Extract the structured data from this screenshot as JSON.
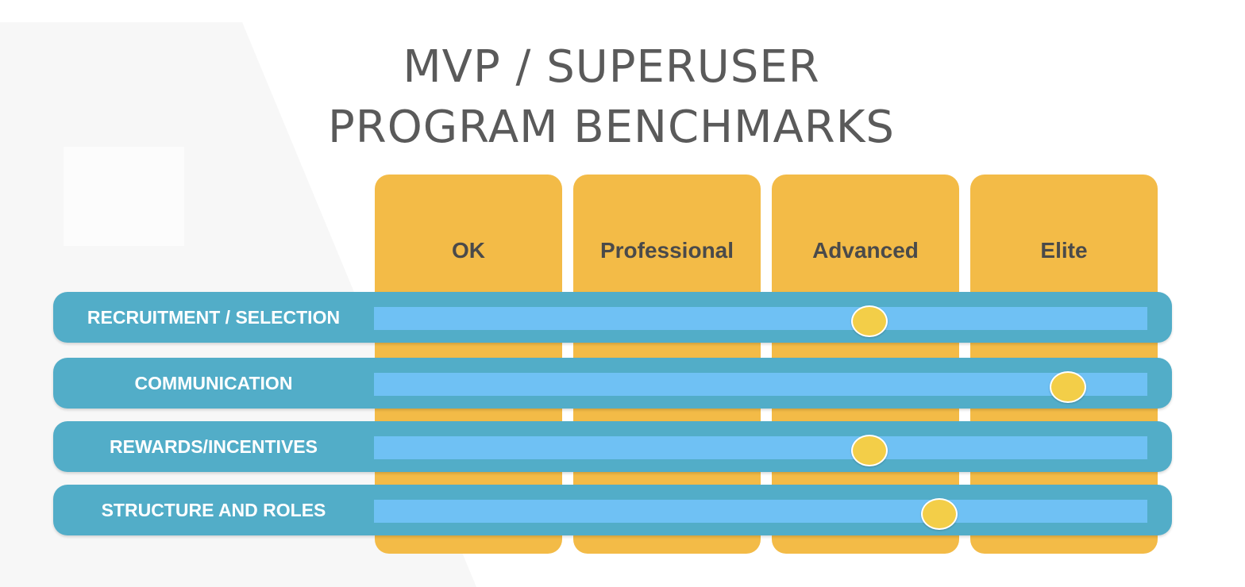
{
  "title": {
    "line1": "MVP / SUPERUSER",
    "line2": "PROGRAM BENCHMARKS"
  },
  "colors": {
    "column": "#f3bb47",
    "row": "#52adc8",
    "track": "#6fc1f4",
    "marker": "#f3ce48",
    "title": "#5a5a5a"
  },
  "levels": [
    "OK",
    "Professional",
    "Advanced",
    "Elite"
  ],
  "categories": [
    {
      "label": "RECRUITMENT / SELECTION",
      "score": 2.5
    },
    {
      "label": "COMMUNICATION",
      "score": 3.5
    },
    {
      "label": "REWARDS/INCENTIVES",
      "score": 2.5
    },
    {
      "label": "STRUCTURE AND ROLES",
      "score": 2.85
    }
  ]
}
